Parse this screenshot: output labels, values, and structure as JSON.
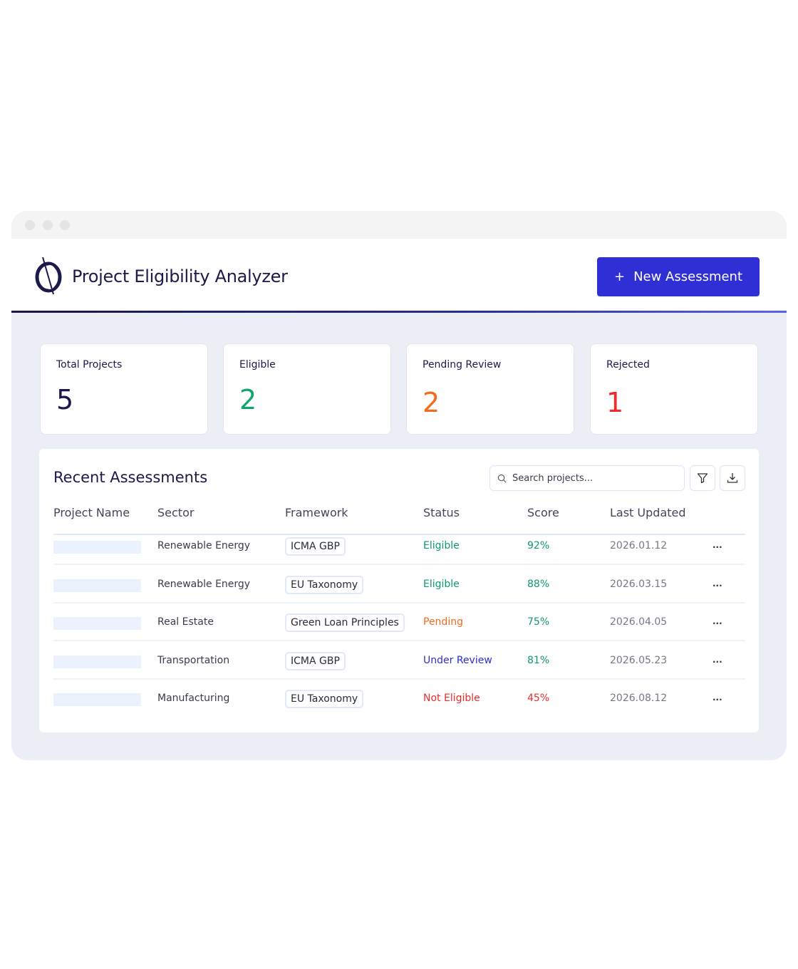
{
  "app": {
    "title": "Project Eligibility Analyzer",
    "new_button": "New Assessment",
    "new_button_icon": "+"
  },
  "stats": [
    {
      "label": "Total Projects",
      "value": "5",
      "color": "#1b1a4a"
    },
    {
      "label": "Eligible",
      "value": "2",
      "color": "#0fa86a"
    },
    {
      "label": "Pending Review",
      "value": "2",
      "color": "#f26a1b"
    },
    {
      "label": "Rejected",
      "value": "1",
      "color": "#ee2b2b"
    }
  ],
  "panel": {
    "title": "Recent Assessments",
    "search_placeholder": "Search projects...",
    "columns": [
      "Project Name",
      "Sector",
      "Framework",
      "Status",
      "Score",
      "Last Updated"
    ],
    "rows": [
      {
        "sector": "Renewable Energy",
        "framework": "ICMA GBP",
        "status": "Eligible",
        "status_color": "#0f9a6a",
        "score": "92%",
        "score_color": "#0f9a6a",
        "updated": "2026.01.12",
        "actions": "..."
      },
      {
        "sector": "Renewable Energy",
        "framework": "EU Taxonomy",
        "status": "Eligible",
        "status_color": "#0f9a6a",
        "score": "88%",
        "score_color": "#0f9a6a",
        "updated": "2026.03.15",
        "actions": "..."
      },
      {
        "sector": "Real Estate",
        "framework": "Green Loan Principles",
        "status": "Pending",
        "status_color": "#f26a1b",
        "score": "75%",
        "score_color": "#0f9a6a",
        "updated": "2026.04.05",
        "actions": "..."
      },
      {
        "sector": "Transportation",
        "framework": "ICMA GBP",
        "status": "Under Review",
        "status_color": "#2a2fd0",
        "score": "81%",
        "score_color": "#0f9a6a",
        "updated": "2026.05.23",
        "actions": "..."
      },
      {
        "sector": "Manufacturing",
        "framework": "EU Taxonomy",
        "status": "Not Eligible",
        "status_color": "#ee2b2b",
        "score": "45%",
        "score_color": "#ee2b2b",
        "updated": "2026.08.12",
        "actions": "..."
      }
    ]
  }
}
